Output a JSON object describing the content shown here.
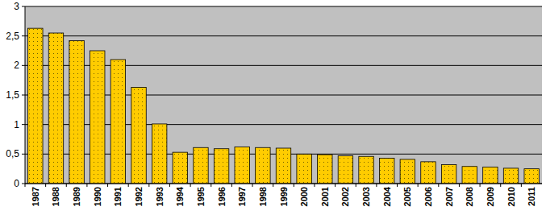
{
  "chart_data": {
    "type": "bar",
    "categories": [
      "1987",
      "1988",
      "1989",
      "1990",
      "1991",
      "1992",
      "1993",
      "1994",
      "1995",
      "1996",
      "1997",
      "1998",
      "1999",
      "2000",
      "2001",
      "2002",
      "2003",
      "2004",
      "2005",
      "2006",
      "2007",
      "2008",
      "2009",
      "2010",
      "2011"
    ],
    "values": [
      2.63,
      2.55,
      2.42,
      2.25,
      2.1,
      1.63,
      1.01,
      0.53,
      0.61,
      0.59,
      0.62,
      0.61,
      0.6,
      0.5,
      0.49,
      0.47,
      0.46,
      0.43,
      0.41,
      0.37,
      0.32,
      0.29,
      0.28,
      0.26,
      0.25
    ],
    "color": "#ffcc00",
    "ylim": [
      0,
      3
    ],
    "yticks": [
      0,
      {
        "value": 0.5,
        "label": "0,5"
      },
      1,
      {
        "value": 1.5,
        "label": "1,5"
      },
      2,
      {
        "value": 2.5,
        "label": "2,5"
      },
      3
    ],
    "grid": true
  }
}
